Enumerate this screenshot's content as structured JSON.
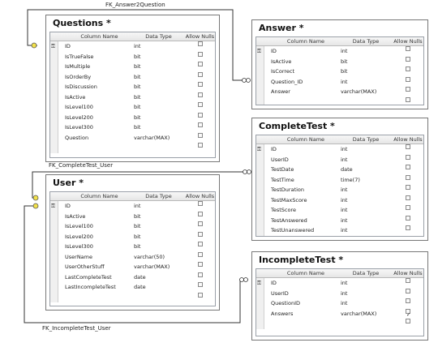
{
  "relationships": [
    {
      "name": "FK_Answer2Question",
      "from": "Questions",
      "to": "Answer"
    },
    {
      "name": "FK_CompleteTest_User",
      "from": "User",
      "to": "CompleteTest"
    },
    {
      "name": "FK_IncompleteTest_User",
      "from": "User",
      "to": "IncompleteTest"
    }
  ],
  "header": {
    "column_name": "Column Name",
    "data_type": "Data Type",
    "allow_nulls": "Allow Nulls"
  },
  "tables": {
    "questions": {
      "title": "Questions *",
      "columns": [
        {
          "name": "ID",
          "type": "int",
          "nullable": false,
          "pk": true
        },
        {
          "name": "IsTrueFalse",
          "type": "bit",
          "nullable": false
        },
        {
          "name": "IsMultiple",
          "type": "bit",
          "nullable": false
        },
        {
          "name": "IsOrderBy",
          "type": "bit",
          "nullable": false
        },
        {
          "name": "IsDiscussion",
          "type": "bit",
          "nullable": false
        },
        {
          "name": "IsActive",
          "type": "bit",
          "nullable": false
        },
        {
          "name": "IsLevel100",
          "type": "bit",
          "nullable": false
        },
        {
          "name": "IsLevel200",
          "type": "bit",
          "nullable": false
        },
        {
          "name": "IsLevel300",
          "type": "bit",
          "nullable": false
        },
        {
          "name": "Question",
          "type": "varchar(MAX)",
          "nullable": false
        }
      ]
    },
    "answer": {
      "title": "Answer *",
      "columns": [
        {
          "name": "ID",
          "type": "int",
          "nullable": false,
          "pk": true
        },
        {
          "name": "IsActive",
          "type": "bit",
          "nullable": false
        },
        {
          "name": "IsCorrect",
          "type": "bit",
          "nullable": false
        },
        {
          "name": "Question_ID",
          "type": "int",
          "nullable": false
        },
        {
          "name": "Answer",
          "type": "varchar(MAX)",
          "nullable": false
        }
      ]
    },
    "user": {
      "title": "User *",
      "columns": [
        {
          "name": "ID",
          "type": "int",
          "nullable": false,
          "pk": true
        },
        {
          "name": "IsActive",
          "type": "bit",
          "nullable": false
        },
        {
          "name": "IsLevel100",
          "type": "bit",
          "nullable": false
        },
        {
          "name": "IsLevel200",
          "type": "bit",
          "nullable": false
        },
        {
          "name": "IsLevel300",
          "type": "bit",
          "nullable": false
        },
        {
          "name": "UserName",
          "type": "varchar(50)",
          "nullable": false
        },
        {
          "name": "UserOtherStuff",
          "type": "varchar(MAX)",
          "nullable": false
        },
        {
          "name": "LastCompleteTest",
          "type": "date",
          "nullable": false
        },
        {
          "name": "LastIncompleteTest",
          "type": "date",
          "nullable": false
        }
      ]
    },
    "completetest": {
      "title": "CompleteTest *",
      "columns": [
        {
          "name": "ID",
          "type": "int",
          "nullable": false,
          "pk": true
        },
        {
          "name": "UserID",
          "type": "int",
          "nullable": false
        },
        {
          "name": "TestDate",
          "type": "date",
          "nullable": false
        },
        {
          "name": "TestTime",
          "type": "time(7)",
          "nullable": false
        },
        {
          "name": "TestDuration",
          "type": "int",
          "nullable": false
        },
        {
          "name": "TestMaxScore",
          "type": "int",
          "nullable": false
        },
        {
          "name": "TestScore",
          "type": "int",
          "nullable": false
        },
        {
          "name": "TestAnswered",
          "type": "int",
          "nullable": false
        },
        {
          "name": "TestUnanswered",
          "type": "int",
          "nullable": false
        }
      ]
    },
    "incompletetest": {
      "title": "IncompleteTest *",
      "columns": [
        {
          "name": "ID",
          "type": "int",
          "nullable": false,
          "pk": true
        },
        {
          "name": "UserID",
          "type": "int",
          "nullable": false
        },
        {
          "name": "QuestionID",
          "type": "int",
          "nullable": false
        },
        {
          "name": "Answers",
          "type": "varchar(MAX)",
          "nullable": true
        }
      ]
    }
  }
}
